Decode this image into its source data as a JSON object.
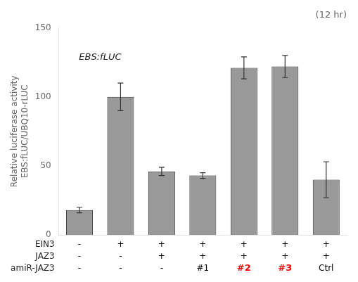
{
  "chart_data": {
    "type": "bar",
    "title": "(12 hr)",
    "ylabel": [
      "Relative luciferase activity",
      "EBS:fLUC/UBQ10-rLUC"
    ],
    "annotation": "EBS:fLUC",
    "values": [
      18,
      100,
      46,
      43,
      121,
      122,
      40
    ],
    "errors": [
      2,
      10,
      3,
      2,
      8,
      8,
      13
    ],
    "color": "#999999",
    "edge_color": "#333333",
    "error_color": "#333333",
    "ylim": [
      0,
      150
    ],
    "yticks": [
      0,
      50,
      100,
      150
    ],
    "grid": false,
    "table": {
      "rows": [
        {
          "label": "EIN3",
          "values": [
            "-",
            "+",
            "+",
            "+",
            "+",
            "+",
            "+"
          ]
        },
        {
          "label": "JAZ3",
          "values": [
            "-",
            "-",
            "+",
            "+",
            "+",
            "+",
            "+"
          ]
        },
        {
          "label": "amiR-JAZ3",
          "values": [
            "-",
            "-",
            "-",
            "#1",
            "#2",
            "#3",
            "Ctrl"
          ],
          "colors": [
            "black",
            "black",
            "black",
            "black",
            "red",
            "red",
            "black"
          ]
        }
      ]
    }
  }
}
